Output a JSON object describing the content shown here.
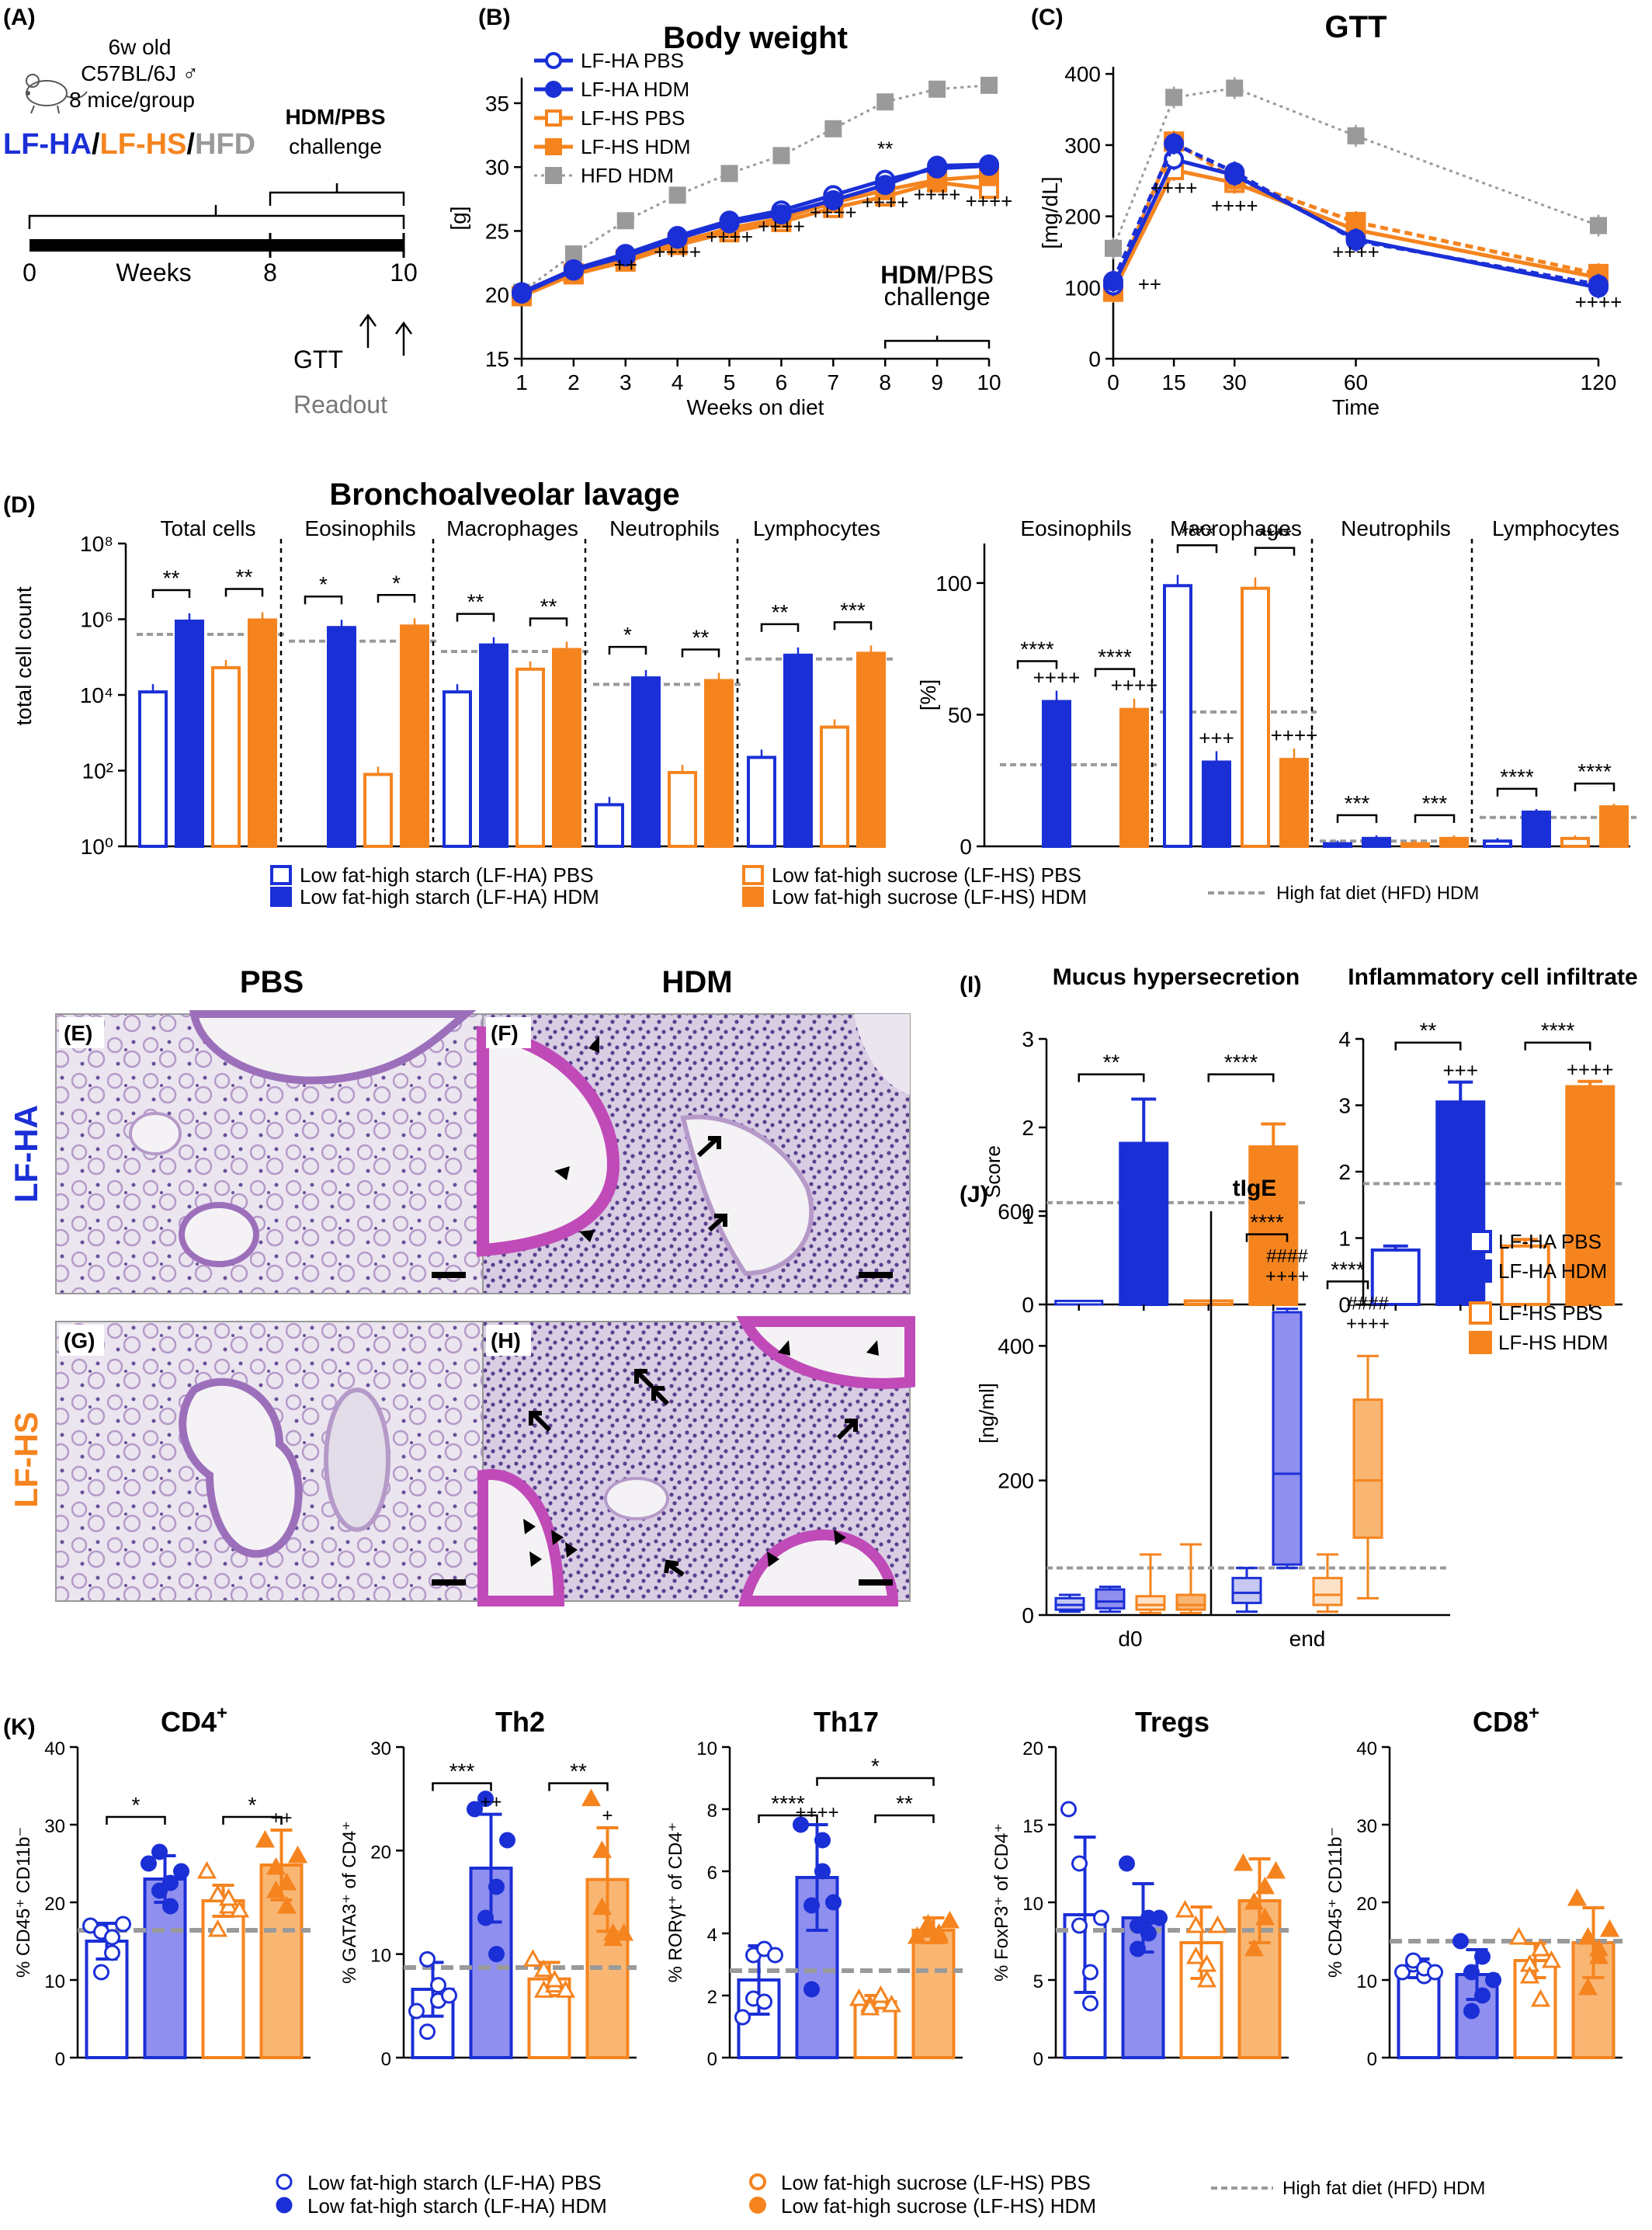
{
  "colors": {
    "blue": "#1b2fd6",
    "blue_light": "#8f8ff0",
    "orange": "#f5841f",
    "orange_light": "#f9b673",
    "gray": "#9a9a9a",
    "hist_pink": "#c04ab7",
    "hist_bg": "#e9e3ef"
  },
  "panels": {
    "A": "(A)",
    "B": "(B)",
    "C": "(C)",
    "D": "(D)",
    "E": "(E)",
    "F": "(F)",
    "G": "(G)",
    "H": "(H)",
    "I": "(I)",
    "J": "(J)",
    "K": "(K)"
  },
  "panelA": {
    "mouse_lines": [
      "6w old",
      "C57BL/6J ♂",
      "8 mice/group"
    ],
    "groups": [
      "LF-HA",
      "/",
      "LF-HS",
      "/",
      "HFD"
    ],
    "challenge_bold": "HDM/PBS",
    "challenge_label": "challenge",
    "axis_label": "Weeks",
    "ticks": [
      "0",
      "8",
      "10"
    ],
    "gtt": "GTT",
    "readout": "Readout"
  },
  "histology": {
    "col_titles": [
      "PBS",
      "HDM"
    ],
    "row_titles": [
      "LF-HA",
      "LF-HS"
    ],
    "arrowheads_count": {
      "F": 3,
      "H": 8
    },
    "arrows_count": {
      "F": 2,
      "H": 5
    }
  },
  "chart_data": [
    {
      "id": "B",
      "type": "line",
      "title": "Body weight",
      "xlabel": "Weeks  on  diet",
      "ylabel": "[g]",
      "x": [
        1,
        2,
        3,
        4,
        5,
        6,
        7,
        8,
        9,
        10
      ],
      "xlim": [
        1,
        10
      ],
      "ylim": [
        15,
        37
      ],
      "yticks": [
        15,
        20,
        25,
        30,
        35
      ],
      "series": [
        {
          "name": "LF-HA PBS",
          "color": "#1b2fd6",
          "marker": "circle-open",
          "dash": "",
          "values": [
            20.2,
            22.0,
            23.2,
            24.6,
            25.8,
            26.6,
            27.8,
            29.0,
            29.9,
            30.1
          ]
        },
        {
          "name": "LF-HA HDM",
          "color": "#1b2fd6",
          "marker": "circle-filled",
          "dash": "",
          "values": [
            20.1,
            21.9,
            23.0,
            24.4,
            25.6,
            26.3,
            27.4,
            28.6,
            30.1,
            30.2
          ]
        },
        {
          "name": "LF-HS PBS",
          "color": "#f5841f",
          "marker": "square-open",
          "dash": "",
          "values": [
            19.9,
            21.6,
            22.6,
            23.9,
            24.9,
            25.7,
            26.8,
            27.7,
            28.8,
            28.3
          ]
        },
        {
          "name": "LF-HS HDM",
          "color": "#f5841f",
          "marker": "square-filled",
          "dash": "",
          "values": [
            19.9,
            21.7,
            22.8,
            24.1,
            25.2,
            26.0,
            27.2,
            28.2,
            29.0,
            29.3
          ]
        },
        {
          "name": "HFD HDM",
          "color": "#9a9a9a",
          "marker": "square-filled",
          "dash": "4,5",
          "values": [
            20.2,
            23.2,
            25.8,
            27.8,
            29.5,
            30.9,
            33.0,
            35.1,
            36.1,
            36.4
          ]
        }
      ],
      "annotations": [
        {
          "x": 3,
          "y": 21.8,
          "text": "++"
        },
        {
          "x": 4,
          "y": 22.8,
          "text": "++++"
        },
        {
          "x": 5,
          "y": 24.0,
          "text": "++++"
        },
        {
          "x": 6,
          "y": 24.8,
          "text": "++++"
        },
        {
          "x": 7,
          "y": 25.9,
          "text": "++++"
        },
        {
          "x": 8,
          "y": 26.7,
          "text": "++++"
        },
        {
          "x": 9,
          "y": 27.3,
          "text": "++++"
        },
        {
          "x": 10,
          "y": 26.8,
          "text": "++++"
        },
        {
          "x": 8,
          "y": 30.9,
          "text": "**"
        }
      ],
      "challenge_bold": "HDM",
      "challenge_rest": "/PBS",
      "challenge_label": "challenge"
    },
    {
      "id": "C",
      "type": "line",
      "title": "GTT",
      "xlabel": "Time",
      "ylabel": "[mg/dL]",
      "x": [
        0,
        15,
        30,
        60,
        120
      ],
      "xticks": [
        0,
        15,
        30,
        60,
        120
      ],
      "xlim": [
        0,
        120
      ],
      "ylim": [
        0,
        410
      ],
      "yticks": [
        0,
        100,
        200,
        300,
        400
      ],
      "series": [
        {
          "name": "LF-HA PBS",
          "color": "#1b2fd6",
          "marker": "circle-open",
          "dash": "",
          "values": [
            103,
            280,
            258,
            168,
            100
          ]
        },
        {
          "name": "LF-HA HDM",
          "color": "#1b2fd6",
          "marker": "circle-filled",
          "dash": "10,6",
          "values": [
            109,
            302,
            262,
            166,
            104
          ]
        },
        {
          "name": "LF-HS PBS",
          "color": "#f5841f",
          "marker": "square-open",
          "dash": "",
          "values": [
            94,
            265,
            247,
            181,
            114
          ]
        },
        {
          "name": "LF-HS HDM",
          "color": "#f5841f",
          "marker": "square-filled",
          "dash": "10,6",
          "values": [
            97,
            305,
            252,
            192,
            119
          ]
        },
        {
          "name": "HFD HDM",
          "color": "#9a9a9a",
          "marker": "square-filled",
          "dash": "4,5",
          "values": [
            155,
            367,
            380,
            313,
            187
          ]
        }
      ],
      "annotations": [
        {
          "x": 9,
          "y": 95,
          "text": "++"
        },
        {
          "x": 15,
          "y": 230,
          "text": "++++"
        },
        {
          "x": 30,
          "y": 205,
          "text": "++++"
        },
        {
          "x": 60,
          "y": 140,
          "text": "++++"
        },
        {
          "x": 120,
          "y": 70,
          "text": "++++"
        }
      ]
    },
    {
      "id": "D-count",
      "type": "bar",
      "title": "Bronchoalveolar lavage",
      "ylabel": "total  cell  count",
      "scale": "log",
      "ylim_exp": [
        0,
        8
      ],
      "yticks": [
        "10⁰",
        "10²",
        "10⁴",
        "10⁶",
        "10⁸"
      ],
      "groups": [
        {
          "label": "Total cells",
          "values_log": [
            4.08,
            5.95,
            4.72,
            5.98
          ],
          "hfd_log": 5.6,
          "sig": [
            "**",
            "**"
          ]
        },
        {
          "label": "Eosinophils",
          "values_log": [
            0,
            5.78,
            1.9,
            5.82
          ],
          "hfd_log": 5.42,
          "sig": [
            "*",
            "*"
          ]
        },
        {
          "label": "Macrophages",
          "values_log": [
            4.08,
            5.32,
            4.68,
            5.2
          ],
          "hfd_log": 5.15,
          "sig": [
            "**",
            "**"
          ]
        },
        {
          "label": "Neutrophils",
          "values_log": [
            1.1,
            4.45,
            1.95,
            4.38
          ],
          "hfd_log": 4.28,
          "sig": [
            "*",
            "**"
          ]
        },
        {
          "label": "Lymphocytes",
          "values_log": [
            2.35,
            5.05,
            3.15,
            5.1
          ],
          "hfd_log": 4.95,
          "sig": [
            "**",
            "***"
          ]
        }
      ]
    },
    {
      "id": "D-pct",
      "type": "bar",
      "ylabel": "[%]",
      "ylim": [
        0,
        115
      ],
      "yticks": [
        0,
        50,
        100
      ],
      "groups": [
        {
          "label": "Eosinophils",
          "values": [
            0,
            55,
            0,
            52
          ],
          "hfd": 31,
          "sig": [
            "****",
            "****"
          ],
          "plus": [
            "++++",
            "++++"
          ]
        },
        {
          "label": "Macrophages",
          "values": [
            99,
            32,
            98,
            33
          ],
          "hfd": 51,
          "sig": [
            "****",
            "****"
          ],
          "plus": [
            "+++",
            "++++"
          ]
        },
        {
          "label": "Neutrophils",
          "values": [
            1,
            3,
            1,
            3
          ],
          "hfd": 2,
          "sig": [
            "***",
            "***"
          ],
          "plus": [
            "",
            ""
          ]
        },
        {
          "label": "Lymphocytes",
          "values": [
            2,
            13,
            3,
            15
          ],
          "hfd": 11,
          "sig": [
            "****",
            "****"
          ],
          "plus": [
            "",
            ""
          ]
        }
      ]
    },
    {
      "id": "I-mucus",
      "type": "bar",
      "title": "Mucus hypersecretion",
      "ylabel": "Score",
      "ylim": [
        0,
        3
      ],
      "yticks": [
        0,
        1,
        2,
        3
      ],
      "values": [
        0,
        1.82,
        0.04,
        1.78
      ],
      "errors": [
        0,
        0.5,
        0,
        0.26
      ],
      "hfd": 1.15,
      "sig": [
        "**",
        "****"
      ],
      "plus": [
        "",
        ""
      ]
    },
    {
      "id": "I-infl",
      "type": "bar",
      "title": "Inflammatory cell infiltrate",
      "ylabel": "",
      "ylim": [
        0,
        4
      ],
      "yticks": [
        0,
        1,
        2,
        3,
        4
      ],
      "values": [
        0.82,
        3.05,
        0.88,
        3.28
      ],
      "errors": [
        0.06,
        0.3,
        0.1,
        0.08
      ],
      "hfd": 1.82,
      "sig": [
        "**",
        "****"
      ],
      "plus": [
        "+++",
        "++++"
      ]
    },
    {
      "id": "J",
      "type": "box",
      "title": "tIgE",
      "ylabel": "[ng/ml]",
      "ylim": [
        0,
        600
      ],
      "yticks": [
        0,
        200,
        400,
        600
      ],
      "categories": [
        "d0",
        "end"
      ],
      "hfd": 70,
      "boxes": [
        {
          "cat": 0,
          "min": 5,
          "q1": 8,
          "median": 15,
          "q3": 25,
          "max": 30
        },
        {
          "cat": 0,
          "min": 5,
          "q1": 10,
          "median": 20,
          "q3": 38,
          "max": 42
        },
        {
          "cat": 0,
          "min": 3,
          "q1": 8,
          "median": 15,
          "q3": 28,
          "max": 90
        },
        {
          "cat": 0,
          "min": 3,
          "q1": 8,
          "median": 15,
          "q3": 30,
          "max": 105
        },
        {
          "cat": 1,
          "min": 5,
          "q1": 18,
          "median": 33,
          "q3": 55,
          "max": 70
        },
        {
          "cat": 1,
          "min": 70,
          "q1": 75,
          "median": 210,
          "q3": 450,
          "max": 455
        },
        {
          "cat": 1,
          "min": 5,
          "q1": 15,
          "median": 30,
          "q3": 55,
          "max": 90
        },
        {
          "cat": 1,
          "min": 25,
          "q1": 115,
          "median": 200,
          "q3": 320,
          "max": 385
        }
      ],
      "sig": [
        "****",
        "****"
      ],
      "hash": [
        "####",
        "####"
      ],
      "plus": [
        "++++",
        "++++"
      ],
      "legend": [
        "LF-HA PBS",
        "LF-HA HDM",
        "LF-HS PBS",
        "LF-HS HDM"
      ]
    },
    {
      "id": "K-cd4",
      "type": "scatter-bar",
      "title": "CD4",
      "title_sup": "+",
      "ylabel": "% CD45⁺ CD11b⁻",
      "ylim": [
        0,
        40
      ],
      "yticks": [
        0,
        10,
        20,
        30,
        40
      ],
      "means": [
        15.0,
        23.0,
        20.2,
        24.8
      ],
      "errors": [
        2.3,
        3.0,
        2.0,
        4.5
      ],
      "hfd": 16.4,
      "points": [
        [
          17,
          16.2,
          13.5,
          11,
          15.5,
          17.2
        ],
        [
          25,
          21.5,
          19.5,
          26.5,
          22.5,
          24
        ],
        [
          24,
          21,
          19.5,
          16.5,
          20.5,
          19
        ],
        [
          28,
          21.5,
          19.5,
          24.5,
          22.5,
          26
        ]
      ],
      "brackets": [
        {
          "a": 0,
          "b": 1,
          "y": 31,
          "text": "*"
        },
        {
          "a": 2,
          "b": 3,
          "y": 31,
          "text": "*"
        }
      ],
      "plus": [
        {
          "i": 3,
          "text": "++"
        }
      ]
    },
    {
      "id": "K-th2",
      "type": "scatter-bar",
      "title": "Th2",
      "ylabel": "% GATA3⁺ of CD4⁺",
      "ylim": [
        0,
        30
      ],
      "yticks": [
        0,
        10,
        20,
        30
      ],
      "means": [
        6.6,
        18.3,
        7.6,
        17.2
      ],
      "errors": [
        2.6,
        5.2,
        1.6,
        5.0
      ],
      "hfd": 8.7,
      "points": [
        [
          4.5,
          2.5,
          7.0,
          9.5,
          5.5,
          6.0
        ],
        [
          24,
          13.5,
          10,
          25,
          16.5,
          21
        ],
        [
          9.5,
          6.5,
          7.0,
          8.5,
          7.5,
          6.5
        ],
        [
          25,
          20,
          12,
          14.5,
          11.5,
          12
        ]
      ],
      "brackets": [
        {
          "a": 0,
          "b": 1,
          "y": 26.5,
          "text": "***"
        },
        {
          "a": 2,
          "b": 3,
          "y": 26.5,
          "text": "**"
        }
      ],
      "plus": [
        {
          "i": 1,
          "text": "++"
        },
        {
          "i": 3,
          "text": "+"
        }
      ]
    },
    {
      "id": "K-th17",
      "type": "scatter-bar",
      "title": "Th17",
      "ylabel": "% RORγt⁺ of CD4⁺",
      "ylim": [
        0,
        10
      ],
      "yticks": [
        0,
        2,
        4,
        6,
        8,
        10
      ],
      "means": [
        2.5,
        5.8,
        1.8,
        4.1
      ],
      "errors": [
        1.1,
        1.7,
        0.2,
        0.4
      ],
      "hfd": 2.8,
      "points": [
        [
          1.3,
          3.3,
          3.5,
          1.9,
          1.8,
          3.3
        ],
        [
          7.5,
          4.9,
          6.0,
          2.2,
          7.0,
          5.0
        ],
        [
          1.9,
          1.7,
          1.8,
          1.6,
          2.0,
          1.7
        ],
        [
          3.9,
          4.3,
          4.0,
          4.1,
          3.9,
          4.4
        ]
      ],
      "brackets": [
        {
          "a": 0,
          "b": 1,
          "y": 7.8,
          "text": "****"
        },
        {
          "a": 2,
          "b": 3,
          "y": 7.8,
          "text": "**"
        },
        {
          "a": 1,
          "b": 3,
          "y": 9.0,
          "text": "*"
        }
      ],
      "plus": [
        {
          "i": 1,
          "text": "++++"
        }
      ]
    },
    {
      "id": "K-treg",
      "type": "scatter-bar",
      "title": "Tregs",
      "ylabel": "% FoxP3⁺ of CD4⁺",
      "ylim": [
        0,
        20
      ],
      "yticks": [
        0,
        5,
        10,
        15,
        20
      ],
      "means": [
        9.2,
        9.0,
        7.4,
        10.1
      ],
      "errors": [
        5.0,
        2.2,
        2.3,
        2.7
      ],
      "hfd": 8.2,
      "points": [
        [
          16.0,
          12.5,
          3.5,
          8.5,
          5.5,
          9.0
        ],
        [
          12.5,
          8.5,
          9.0,
          7.0,
          8.0,
          9.0
        ],
        [
          9.5,
          8.5,
          5.0,
          6.5,
          6.0,
          8.5
        ],
        [
          12.5,
          10.0,
          11.0,
          7.0,
          9.0,
          12.0
        ]
      ],
      "brackets": [],
      "plus": []
    },
    {
      "id": "K-cd8",
      "type": "scatter-bar",
      "title": "CD8",
      "title_sup": "+",
      "ylabel": "% CD45⁺ CD11b⁻",
      "ylim": [
        0,
        40
      ],
      "yticks": [
        0,
        10,
        20,
        30,
        40
      ],
      "means": [
        11.5,
        10.7,
        12.5,
        14.8
      ],
      "errors": [
        1.2,
        3.2,
        2.2,
        4.5
      ],
      "hfd": 15.0,
      "points": [
        [
          11,
          12,
          10.5,
          12.5,
          11.5,
          11
        ],
        [
          15,
          6,
          8,
          11,
          13,
          10
        ],
        [
          15.5,
          12,
          7.5,
          10.5,
          14,
          12.5
        ],
        [
          20.5,
          9,
          13,
          15.5,
          14,
          16.5
        ]
      ],
      "brackets": [],
      "plus": []
    }
  ],
  "legends": {
    "D": [
      "Low fat-high starch (LF-HA) PBS",
      "Low fat-high starch (LF-HA) HDM",
      "Low fat-high sucrose (LF-HS) PBS",
      "Low fat-high sucrose (LF-HS) HDM",
      "High fat diet (HFD) HDM"
    ],
    "K": [
      "Low fat-high starch (LF-HA) PBS",
      "Low fat-high starch (LF-HA) HDM",
      "Low fat-high sucrose (LF-HS) PBS",
      "Low fat-high sucrose (LF-HS) HDM",
      "High fat diet (HFD) HDM"
    ]
  }
}
